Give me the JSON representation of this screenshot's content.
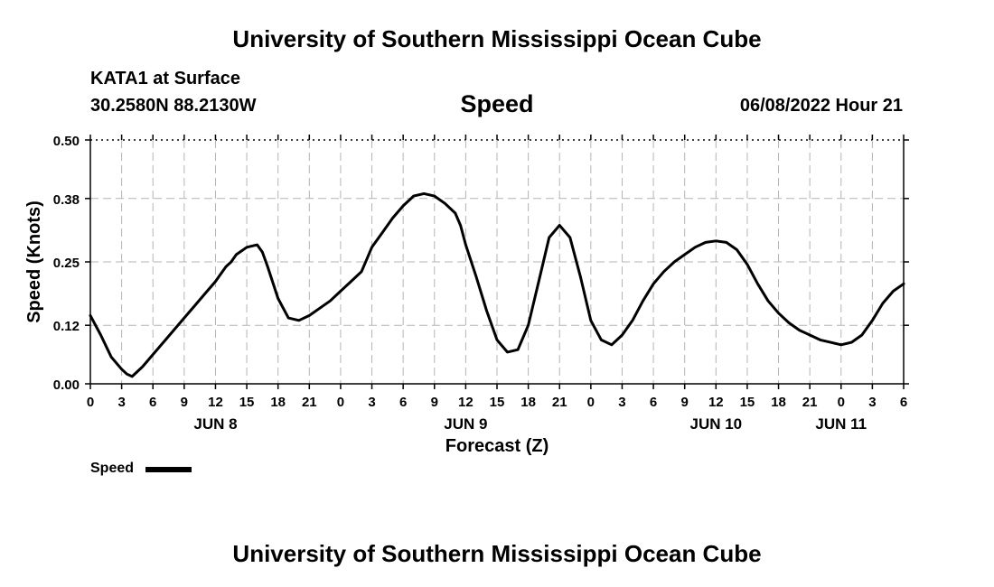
{
  "header": {
    "title": "University of Southern Mississippi Ocean Cube",
    "station": "KATA1 at Surface",
    "coordinates": "30.2580N  88.2130W",
    "datetime": "06/08/2022 Hour 21"
  },
  "footer": {
    "title": "University of Southern Mississippi Ocean Cube"
  },
  "legend": {
    "label": "Speed",
    "color": "#000000"
  },
  "chart_data": {
    "type": "line",
    "title": "Speed",
    "xlabel": "Forecast (Z)",
    "ylabel": "Speed (Knots)",
    "xlim": [
      0,
      78
    ],
    "ylim": [
      0,
      0.5
    ],
    "grid": true,
    "legend_position": "bottom-left",
    "y_ticks": [
      "0.00",
      "0.12",
      "0.25",
      "0.38",
      "0.50"
    ],
    "x_tick_labels": [
      "0",
      "3",
      "6",
      "9",
      "12",
      "15",
      "18",
      "21",
      "0",
      "3",
      "6",
      "9",
      "12",
      "15",
      "18",
      "21",
      "0",
      "3",
      "6",
      "9",
      "12",
      "15",
      "18",
      "21",
      "0",
      "3",
      "6"
    ],
    "day_labels": [
      "JUN 8",
      "JUN 9",
      "JUN 10",
      "JUN 11"
    ],
    "series": [
      {
        "name": "Speed",
        "color": "#000000",
        "x": [
          0,
          1,
          2,
          3,
          3.5,
          4,
          5,
          6,
          7,
          8,
          9,
          10,
          11,
          12,
          12.5,
          13,
          13.5,
          14,
          15,
          16,
          16.5,
          17,
          18,
          19,
          20,
          21,
          22,
          23,
          24,
          25,
          26,
          26.5,
          27,
          28,
          29,
          30,
          31,
          32,
          33,
          34,
          35,
          35.5,
          36,
          37,
          38,
          39,
          40,
          41,
          42,
          43,
          44,
          45,
          46,
          47,
          48,
          49,
          50,
          51,
          52,
          53,
          54,
          55,
          56,
          57,
          58,
          59,
          60,
          61,
          62,
          63,
          64,
          65,
          66,
          67,
          68,
          69,
          70,
          71,
          72,
          73,
          74,
          75,
          76,
          77,
          78
        ],
        "y": [
          0.14,
          0.1,
          0.055,
          0.03,
          0.02,
          0.015,
          0.035,
          0.06,
          0.085,
          0.11,
          0.135,
          0.16,
          0.185,
          0.21,
          0.225,
          0.24,
          0.25,
          0.265,
          0.28,
          0.285,
          0.27,
          0.24,
          0.175,
          0.135,
          0.13,
          0.14,
          0.155,
          0.17,
          0.19,
          0.21,
          0.23,
          0.255,
          0.28,
          0.31,
          0.34,
          0.365,
          0.385,
          0.39,
          0.385,
          0.37,
          0.35,
          0.325,
          0.285,
          0.22,
          0.15,
          0.09,
          0.065,
          0.07,
          0.12,
          0.21,
          0.3,
          0.325,
          0.3,
          0.22,
          0.13,
          0.09,
          0.08,
          0.1,
          0.13,
          0.17,
          0.205,
          0.23,
          0.25,
          0.265,
          0.28,
          0.29,
          0.293,
          0.29,
          0.275,
          0.245,
          0.205,
          0.17,
          0.145,
          0.125,
          0.11,
          0.1,
          0.09,
          0.085,
          0.08,
          0.085,
          0.1,
          0.13,
          0.165,
          0.19,
          0.205
        ]
      }
    ]
  }
}
